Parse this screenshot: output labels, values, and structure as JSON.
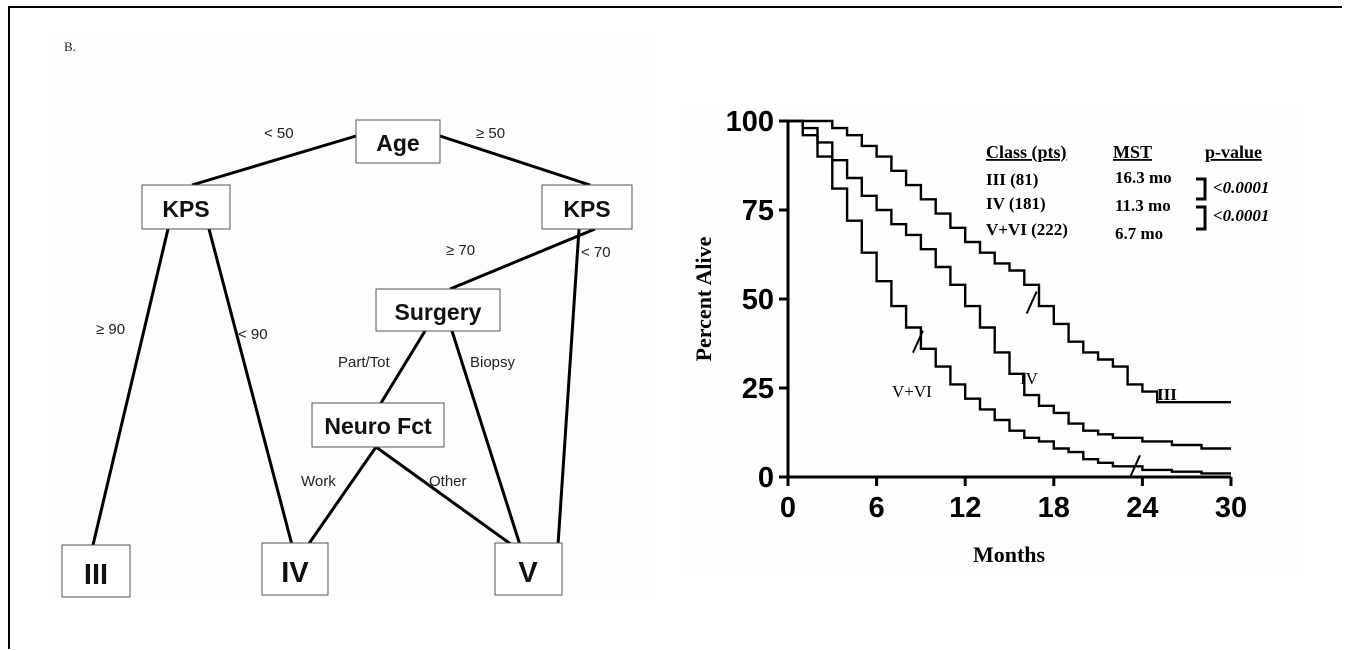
{
  "panel_label": "B.",
  "tree": {
    "nodes": {
      "age": "Age",
      "kps_left": "KPS",
      "kps_right": "KPS",
      "surgery": "Surgery",
      "neuro": "Neuro Fct",
      "class_iii": "III",
      "class_iv": "IV",
      "class_v": "V"
    },
    "edges": {
      "age_lt50": "< 50",
      "age_ge50": "≥ 50",
      "kps_ge90": "≥ 90",
      "kps_lt90": "< 90",
      "kps_ge70": "≥ 70",
      "kps_lt70": "< 70",
      "surgery_part": "Part/Tot",
      "surgery_biopsy": "Biopsy",
      "neuro_work": "Work",
      "neuro_other": "Other"
    }
  },
  "chart_data": {
    "type": "line",
    "title": "",
    "xlabel": "Months",
    "ylabel": "Percent Alive",
    "xlim": [
      0,
      30
    ],
    "ylim": [
      0,
      100
    ],
    "xticks": [
      "0",
      "6",
      "12",
      "18",
      "24",
      "30"
    ],
    "yticks": [
      "0",
      "25",
      "50",
      "75",
      "100"
    ],
    "series": [
      {
        "name": "III",
        "x": [
          0,
          2,
          3,
          4,
          5,
          6,
          7,
          8,
          9,
          10,
          11,
          12,
          13,
          14,
          15,
          16,
          17,
          18,
          19,
          20,
          21,
          22,
          23,
          24,
          25,
          30
        ],
        "y": [
          100,
          100,
          98,
          96,
          93,
          90,
          86,
          82,
          78,
          74,
          70,
          66,
          63,
          60,
          58,
          54,
          48,
          43,
          38,
          35,
          33,
          31,
          26,
          24,
          21,
          21
        ]
      },
      {
        "name": "IV",
        "x": [
          0,
          1,
          2,
          3,
          4,
          5,
          6,
          7,
          8,
          9,
          10,
          11,
          12,
          13,
          14,
          15,
          16,
          17,
          18,
          19,
          20,
          21,
          22,
          24,
          26,
          28,
          30
        ],
        "y": [
          100,
          98,
          94,
          89,
          84,
          79,
          75,
          71,
          68,
          64,
          59,
          54,
          48,
          42,
          35,
          29,
          23,
          20,
          18,
          15,
          13,
          12,
          11,
          10,
          9,
          8,
          8
        ]
      },
      {
        "name": "V+VI",
        "x": [
          0,
          1,
          2,
          3,
          4,
          5,
          6,
          7,
          8,
          9,
          10,
          11,
          12,
          13,
          14,
          15,
          16,
          17,
          18,
          19,
          20,
          21,
          22,
          24,
          26,
          28,
          30
        ],
        "y": [
          100,
          96,
          90,
          81,
          72,
          63,
          55,
          48,
          42,
          36,
          31,
          26,
          22,
          19,
          16,
          13,
          11,
          10,
          8,
          7,
          5,
          4,
          3,
          2,
          1.5,
          1,
          1
        ]
      }
    ],
    "censor_marks": [
      {
        "series": "III",
        "x": 16.5,
        "y": 49
      },
      {
        "series": "V+VI",
        "x": 8.8,
        "y": 38
      },
      {
        "series": "V+VI",
        "x": 23.5,
        "y": 3
      }
    ],
    "curve_labels": {
      "iii": "III",
      "iv": "IV",
      "vvi": "V+VI"
    },
    "legend_table": {
      "headers": [
        "Class (pts)",
        "MST",
        "p-value"
      ],
      "rows": [
        {
          "cls": "III (81)",
          "mst": "16.3 mo"
        },
        {
          "cls": "IV (181)",
          "mst": "11.3 mo"
        },
        {
          "cls": "V+VI (222)",
          "mst": "6.7 mo"
        }
      ],
      "pvalues": [
        "<0.0001",
        "<0.0001"
      ]
    },
    "colors": {
      "line": "#000000"
    }
  }
}
